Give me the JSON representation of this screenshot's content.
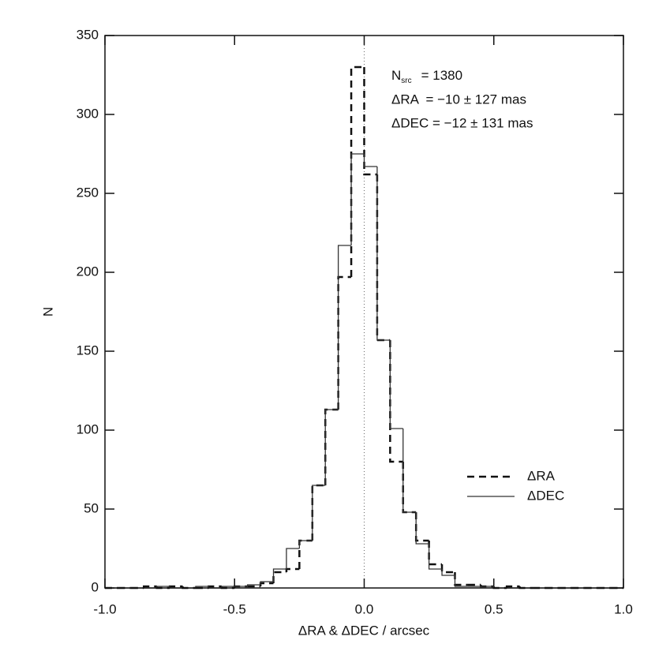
{
  "chart_data": {
    "type": "histogram",
    "x_label": "ΔRA & ΔDEC / arcsec",
    "y_label": "N",
    "bins": [
      -1.0,
      -0.95,
      -0.9,
      -0.85,
      -0.8,
      -0.75,
      -0.7,
      -0.65,
      -0.6,
      -0.55,
      -0.5,
      -0.45,
      -0.4,
      -0.35,
      -0.3,
      -0.25,
      -0.2,
      -0.15,
      -0.1,
      -0.05,
      0.0,
      0.05,
      0.1,
      0.15,
      0.2,
      0.25,
      0.3,
      0.35,
      0.4,
      0.45,
      0.5,
      0.55,
      0.6,
      0.65,
      0.7,
      0.75,
      0.8,
      0.85,
      0.9,
      0.95,
      1.0
    ],
    "series": [
      {
        "name": "ΔRA",
        "color": "#111111",
        "style": "dashed",
        "values": [
          0,
          0,
          0,
          1,
          0,
          1,
          0,
          0,
          1,
          0,
          1,
          1,
          3,
          10,
          12,
          30,
          65,
          113,
          197,
          330,
          262,
          157,
          80,
          48,
          30,
          15,
          10,
          2,
          2,
          1,
          0,
          1,
          0,
          0,
          0,
          0,
          0,
          0,
          0,
          0
        ]
      },
      {
        "name": "ΔDEC",
        "color": "#333333",
        "style": "solid",
        "values": [
          0,
          0,
          0,
          0,
          1,
          0,
          0,
          1,
          0,
          1,
          1,
          2,
          4,
          12,
          25,
          30,
          65,
          113,
          217,
          275,
          267,
          157,
          101,
          48,
          28,
          12,
          8,
          1,
          1,
          1,
          0,
          0,
          0,
          0,
          0,
          0,
          0,
          0,
          0,
          0
        ]
      }
    ],
    "xlim": [
      -1.0,
      1.0
    ],
    "ylim": [
      0,
      350
    ],
    "xticks": [
      {
        "value": -1.0,
        "label": "-1.0"
      },
      {
        "value": -0.5,
        "label": "-0.5"
      },
      {
        "value": 0,
        "label": "0.0"
      },
      {
        "value": 0.5,
        "label": "0.5"
      },
      {
        "value": 1.0,
        "label": "1.0"
      }
    ],
    "yticks": [
      0,
      50,
      100,
      150,
      200,
      250,
      300,
      350
    ],
    "vline": 0,
    "legend": "lower right",
    "n_label": {
      "base": "N",
      "sub": "src",
      "text": "= 1380"
    },
    "annotations": [
      "ΔRA  = −10 ± 127 mas",
      "ΔDEC = −12 ± 131 mas"
    ]
  }
}
